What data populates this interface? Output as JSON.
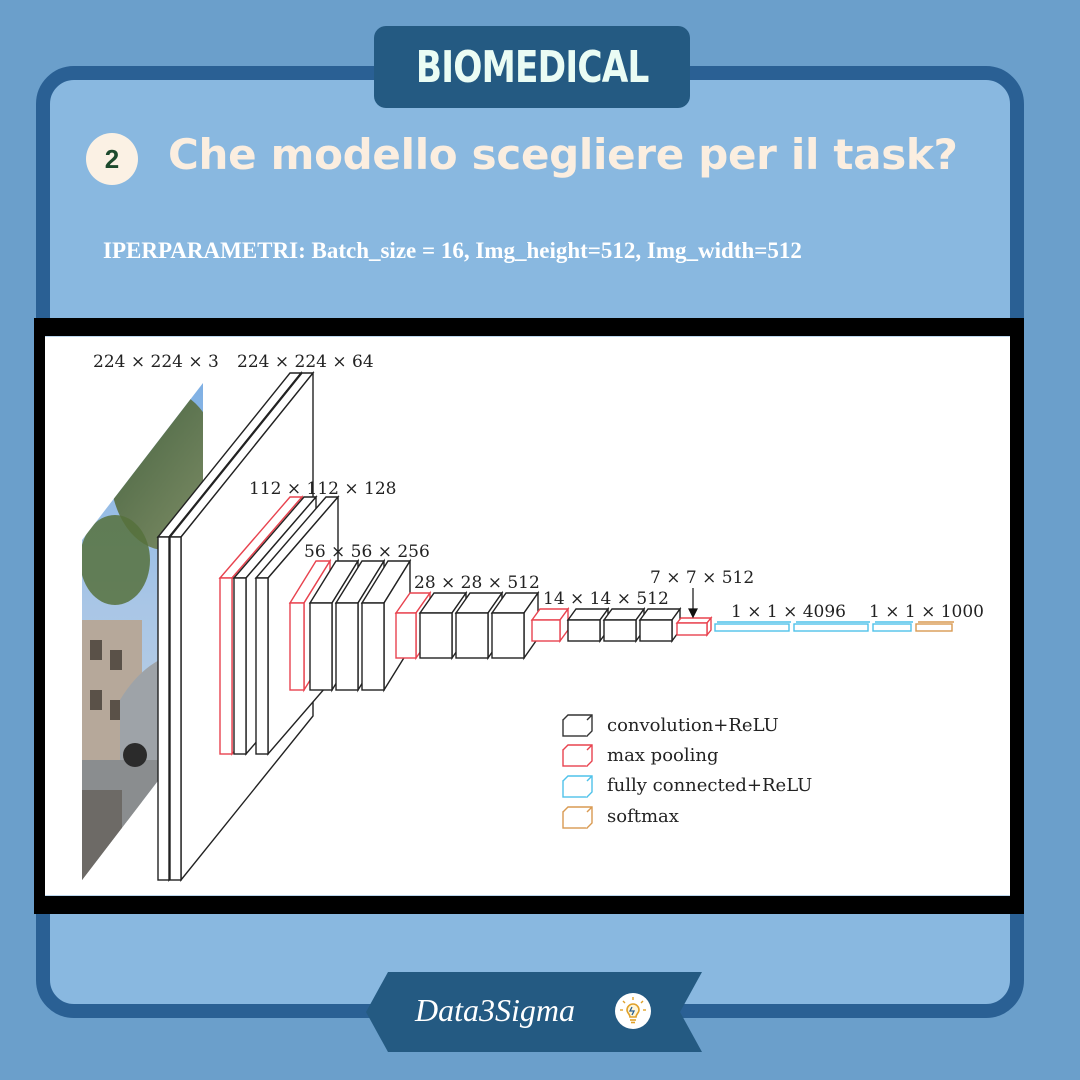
{
  "header": {
    "badge": "BIOMEDICAL",
    "step_number": "2",
    "title": "Che modello scegliere per il task?"
  },
  "params_text": "IPERPARAMETRI: Batch_size = 16, Img_height=512, Img_width=512",
  "diagram": {
    "layer_labels": [
      "224 × 224 × 3",
      "224 × 224 × 64",
      "112 × 112 × 128",
      "56 × 56 × 256",
      "28 × 28 × 512",
      "14 × 14 × 512",
      "7 × 7 × 512",
      "1 × 1 × 4096",
      "1 × 1 × 1000"
    ],
    "legend": [
      {
        "label": "convolution+ReLU",
        "color": "#333333"
      },
      {
        "label": "max pooling",
        "color": "#e8434f"
      },
      {
        "label": "fully connected+ReLU",
        "color": "#4fc2ea"
      },
      {
        "label": "softmax",
        "color": "#d99a52"
      }
    ]
  },
  "footer": {
    "brand": "Data3Sigma",
    "icon": "lightbulb-icon"
  },
  "colors": {
    "background": "#6b9fcb",
    "frame_border": "#2a6094",
    "panel": "#89b8e0",
    "badge": "#245a82"
  }
}
